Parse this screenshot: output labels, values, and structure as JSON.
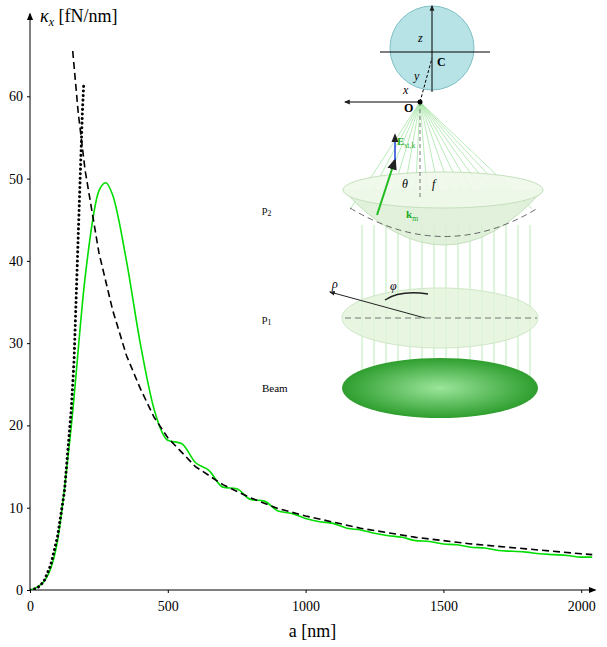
{
  "chart_data": {
    "type": "line",
    "x_label": "a [nm]",
    "y_label": {
      "symbol": "κ",
      "sub": "x",
      "unit": " [fN/nm]"
    },
    "xlim": [
      0,
      2050
    ],
    "ylim": [
      0,
      70
    ],
    "xticks": [
      0,
      500,
      1000,
      1500,
      2000
    ],
    "yticks": [
      0,
      10,
      20,
      30,
      40,
      50,
      60
    ],
    "grid": false,
    "series": [
      {
        "color": "#00dd00",
        "line_style": "solid",
        "x": [
          0,
          50,
          100,
          150,
          200,
          250,
          275,
          300,
          350,
          400,
          450,
          500,
          550,
          600,
          650,
          700,
          750,
          800,
          850,
          900,
          950,
          1000,
          1050,
          1100,
          1150,
          1200,
          1250,
          1300,
          1350,
          1400,
          1450,
          1500,
          1550,
          1600,
          1650,
          1700,
          1750,
          1800,
          1850,
          1900,
          1950,
          2000,
          2040
        ],
        "values": [
          0,
          1,
          6,
          20,
          38,
          48.5,
          49.5,
          48,
          40,
          30,
          22,
          18.2,
          17.8,
          15.5,
          14.5,
          12.5,
          12.3,
          11,
          10.8,
          9.6,
          9.3,
          8.7,
          8.3,
          8.1,
          7.5,
          7.3,
          6.9,
          6.6,
          6.4,
          6.0,
          5.9,
          5.6,
          5.5,
          5.2,
          5.1,
          4.8,
          4.7,
          4.6,
          4.4,
          4.3,
          4.2,
          4.0,
          4.0
        ]
      },
      {
        "color": "#000000",
        "line_style": "dashed",
        "x": [
          155,
          175,
          200,
          250,
          300,
          350,
          400,
          450,
          500,
          600,
          700,
          800,
          900,
          1000,
          1200,
          1400,
          1600,
          1800,
          2000,
          2040
        ],
        "values": [
          65.5,
          58,
          51,
          41,
          34,
          28.5,
          24.5,
          21,
          18.5,
          15,
          12.8,
          11.2,
          9.9,
          9,
          7.5,
          6.4,
          5.6,
          5,
          4.4,
          4.3
        ]
      },
      {
        "color": "#000000",
        "line_style": "dotted",
        "x": [
          0,
          25,
          50,
          75,
          100,
          125,
          150,
          160,
          170,
          180,
          190,
          195
        ],
        "values": [
          0,
          0.2,
          1,
          3,
          6.5,
          12,
          22,
          28,
          38,
          48,
          58,
          61.5
        ]
      }
    ],
    "annotations": [
      {
        "text": "z"
      },
      {
        "text": "C"
      },
      {
        "text": "y"
      },
      {
        "text": "x"
      },
      {
        "text": "O"
      },
      {
        "text": "E",
        "sub": "st,k"
      },
      {
        "text": "θ"
      },
      {
        "text": "f"
      },
      {
        "text": "p",
        "sub": "2"
      },
      {
        "text": "k",
        "sub": "m"
      },
      {
        "text": "ρ"
      },
      {
        "text": "φ"
      },
      {
        "text": "p",
        "sub": "1"
      },
      {
        "text": "Beam"
      }
    ]
  }
}
